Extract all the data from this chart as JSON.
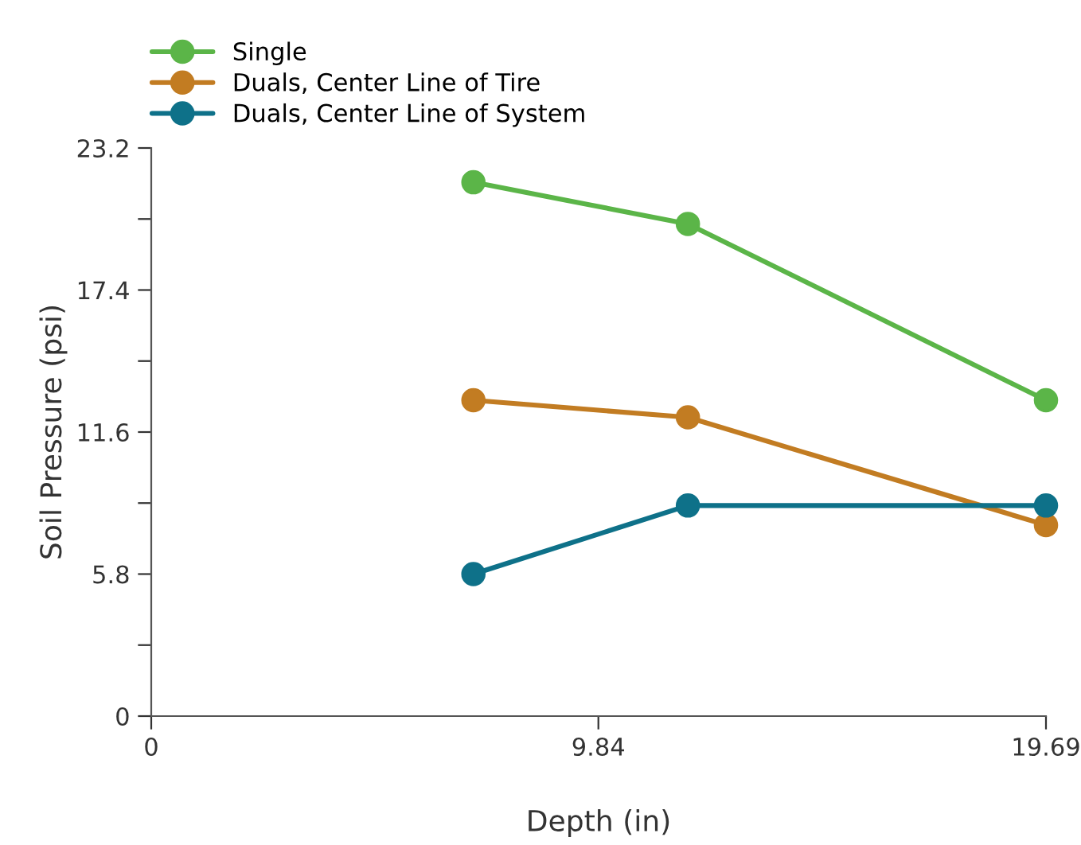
{
  "chart_data": {
    "type": "line",
    "xlabel": "Depth (in)",
    "ylabel": "Soil Pressure (psi)",
    "x": [
      7.09,
      11.81,
      19.69
    ],
    "series": [
      {
        "name": "Single",
        "color": "#5bb548",
        "values": [
          21.8,
          20.1,
          12.9
        ]
      },
      {
        "name": "Duals, Center Line of Tire",
        "color": "#c27c22",
        "values": [
          12.9,
          12.2,
          7.8
        ]
      },
      {
        "name": "Duals, Center Line of System",
        "color": "#0e7189",
        "values": [
          5.8,
          8.6,
          8.6
        ]
      }
    ],
    "xlim": [
      0,
      19.69
    ],
    "xticks": [
      0,
      9.84,
      19.69
    ],
    "ylim": [
      0,
      23.2
    ],
    "yticks": [
      0,
      {
        "value": 2.9,
        "label": null
      },
      5.8,
      {
        "value": 8.7,
        "label": null
      },
      11.6,
      {
        "value": 14.5,
        "label": null
      },
      17.4,
      {
        "value": 20.3,
        "label": null
      },
      23.2
    ],
    "grid": false,
    "legend": "top left",
    "marker": "circle",
    "line_style": "solid"
  }
}
